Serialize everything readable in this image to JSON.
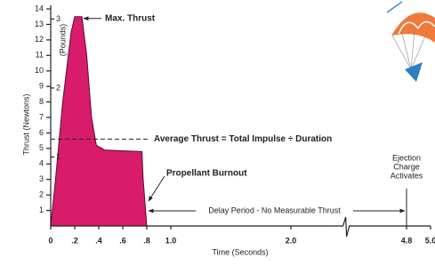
{
  "chart_data": {
    "type": "area",
    "x": [
      0,
      0.04,
      0.1,
      0.17,
      0.2,
      0.26,
      0.3,
      0.34,
      0.38,
      0.45,
      0.6,
      0.76,
      0.77,
      0.79,
      0.8
    ],
    "values": [
      0,
      3,
      8,
      12.5,
      13.5,
      13.5,
      11,
      7,
      5.2,
      4.9,
      4.85,
      4.8,
      3,
      1,
      0
    ],
    "color": "#d81b6a",
    "xlim": [
      0,
      5.0
    ],
    "x_axis_break": [
      2.35,
      4.4
    ],
    "xticks": [
      0,
      {
        "value": 0.2,
        "label": ".2"
      },
      {
        "value": 0.4,
        "label": ".4"
      },
      {
        "value": 0.6,
        "label": ".6"
      },
      {
        "value": 0.8,
        "label": ".8"
      },
      {
        "value": 1.0,
        "label": "1.0"
      },
      {
        "value": 2.0,
        "label": "2.0"
      },
      4.8,
      {
        "value": 5.0,
        "label": "5.0"
      }
    ],
    "xlabel": "Time (Seconds)",
    "ylim": [
      0,
      14
    ],
    "yticks": [
      1,
      2,
      3,
      4,
      5,
      6,
      7,
      8,
      9,
      10,
      11,
      12,
      13,
      14
    ],
    "ylabel": "Thrust (Newtons)",
    "y2lim": [
      0,
      3.147
    ],
    "y2ticks": [
      1,
      2,
      3
    ],
    "y2label": "(Pounds)",
    "max_thrust_label": "Max. Thrust",
    "average_thrust": {
      "value": 5.6,
      "label": "Average Thrust = Total Impulse ÷ Duration"
    },
    "burnout": {
      "x": 0.8,
      "label": "Propellant Burnout"
    },
    "delay_label": "Delay Period - No Measurable Thrust",
    "ejection": {
      "x": 4.8,
      "label": [
        "Ejection",
        "Charge",
        "Activates"
      ]
    }
  }
}
